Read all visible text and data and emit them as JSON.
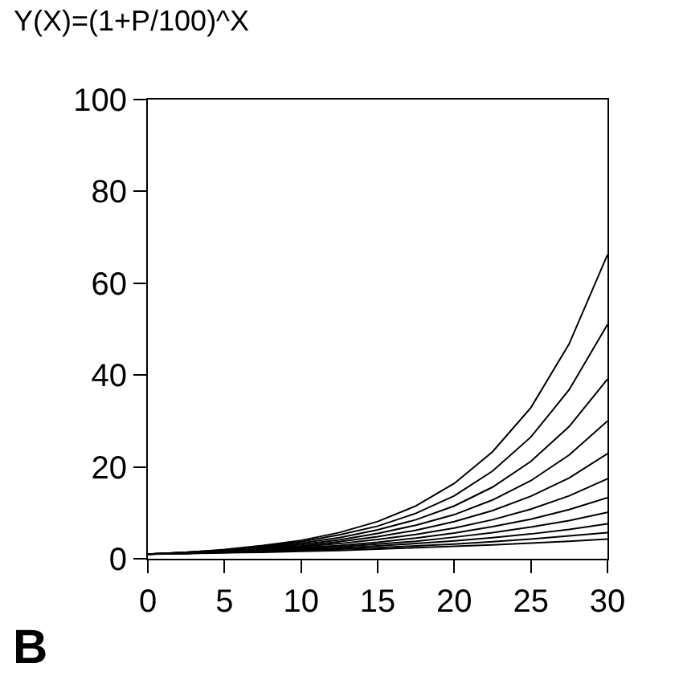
{
  "chart_data": {
    "type": "line",
    "title": "Y(X)=(1+P/100)^X",
    "annotations": [
      "B"
    ],
    "x": [
      0,
      2.5,
      5,
      7.5,
      10,
      12.5,
      15,
      17.5,
      20,
      22.5,
      25,
      27.5,
      30
    ],
    "xlim": [
      0,
      30
    ],
    "xticks": [
      0,
      5,
      10,
      15,
      20,
      25,
      30
    ],
    "ylim": [
      0,
      100
    ],
    "yticks": [
      0,
      20,
      40,
      60,
      80,
      100
    ],
    "marker": "none",
    "line_style": "solid",
    "series": [
      {
        "color": "#000000",
        "values": [
          1,
          1.4,
          2.0,
          2.9,
          4.0,
          5.7,
          8.1,
          11.5,
          16.4,
          23.3,
          32.9,
          46.8,
          66.2
        ]
      },
      {
        "color": "#000000",
        "values": [
          1,
          1.4,
          1.9,
          2.7,
          3.7,
          5.2,
          7.1,
          9.9,
          13.7,
          19.1,
          26.5,
          36.8,
          51.0
        ]
      },
      {
        "color": "#000000",
        "values": [
          1,
          1.4,
          1.8,
          2.5,
          3.4,
          4.6,
          6.3,
          8.5,
          11.5,
          15.6,
          21.2,
          28.8,
          39.1
        ]
      },
      {
        "color": "#000000",
        "values": [
          1,
          1.3,
          1.8,
          2.3,
          3.1,
          4.1,
          5.5,
          7.3,
          9.6,
          12.8,
          17.0,
          22.6,
          30.0
        ]
      },
      {
        "color": "#000000",
        "values": [
          1,
          1.3,
          1.7,
          2.2,
          2.8,
          3.7,
          4.8,
          6.2,
          8.1,
          10.5,
          13.6,
          17.6,
          22.9
        ]
      },
      {
        "color": "#000000",
        "values": [
          1,
          1.3,
          1.6,
          2.0,
          2.6,
          3.3,
          4.2,
          5.3,
          6.7,
          8.5,
          10.8,
          13.7,
          17.4
        ]
      },
      {
        "color": "#000000",
        "values": [
          1,
          1.2,
          1.5,
          1.9,
          2.4,
          2.9,
          3.6,
          4.5,
          5.6,
          7.0,
          8.6,
          10.7,
          13.3
        ]
      },
      {
        "color": "#000000",
        "values": [
          1,
          1.2,
          1.5,
          1.8,
          2.2,
          2.6,
          3.2,
          3.8,
          4.7,
          5.7,
          6.9,
          8.3,
          10.1
        ]
      },
      {
        "color": "#000000",
        "values": [
          1,
          1.2,
          1.4,
          1.7,
          2.0,
          2.3,
          2.8,
          3.3,
          3.9,
          4.6,
          5.4,
          6.4,
          7.6
        ]
      },
      {
        "color": "#000000",
        "values": [
          1,
          1.2,
          1.3,
          1.6,
          1.8,
          2.1,
          2.4,
          2.8,
          3.2,
          3.7,
          4.3,
          5.0,
          5.7
        ]
      },
      {
        "color": "#000000",
        "values": [
          1,
          1.1,
          1.3,
          1.4,
          1.6,
          1.8,
          2.1,
          2.4,
          2.7,
          3.0,
          3.4,
          3.8,
          4.3
        ]
      }
    ]
  }
}
